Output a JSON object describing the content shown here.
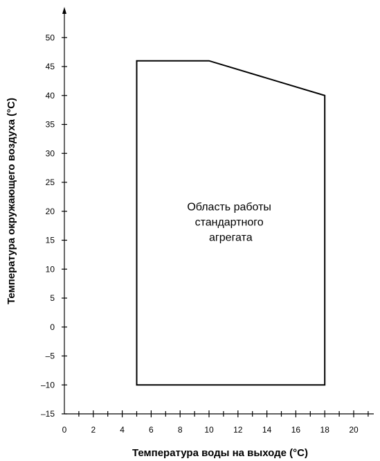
{
  "chart_data": {
    "type": "area",
    "xlabel": "Температура воды на выходе (°C)",
    "ylabel": "Температура окружающего воздуха (°C)",
    "xlim": [
      0,
      22
    ],
    "ylim": [
      -15,
      55
    ],
    "x_ticks": [
      {
        "value": 0,
        "label": "0"
      },
      {
        "value": 2,
        "label": "2"
      },
      {
        "value": 4,
        "label": "4"
      },
      {
        "value": 6,
        "label": "6"
      },
      {
        "value": 8,
        "label": "8"
      },
      {
        "value": 10,
        "label": "10"
      },
      {
        "value": 12,
        "label": "12"
      },
      {
        "value": 14,
        "label": "14"
      },
      {
        "value": 16,
        "label": "16"
      },
      {
        "value": 18,
        "label": "18"
      },
      {
        "value": 20,
        "label": "20"
      }
    ],
    "x_minor_ticks": [
      1,
      3,
      5,
      7,
      9,
      11,
      13,
      15,
      17,
      19,
      21
    ],
    "y_ticks": [
      {
        "value": 50,
        "label": "50"
      },
      {
        "value": 45,
        "label": "45"
      },
      {
        "value": 40,
        "label": "40"
      },
      {
        "value": 35,
        "label": "35"
      },
      {
        "value": 30,
        "label": "30"
      },
      {
        "value": 25,
        "label": "25"
      },
      {
        "value": 20,
        "label": "20"
      },
      {
        "value": 15,
        "label": "15"
      },
      {
        "value": 10,
        "label": "10"
      },
      {
        "value": 5,
        "label": "5"
      },
      {
        "value": 0,
        "label": "0"
      },
      {
        "value": -5,
        "label": "–5"
      },
      {
        "value": -10,
        "label": "–10"
      },
      {
        "value": -15,
        "label": "–15"
      }
    ],
    "region": {
      "label_lines": [
        "Область работы",
        "стандартного",
        "агрегата"
      ],
      "points": [
        {
          "x": 5,
          "y": -10
        },
        {
          "x": 5,
          "y": 46
        },
        {
          "x": 10,
          "y": 46
        },
        {
          "x": 18,
          "y": 40
        },
        {
          "x": 18,
          "y": -10
        }
      ],
      "label_at": {
        "x": 11.5,
        "y": 17.5
      }
    },
    "grid": false,
    "colors": {
      "line": "#000000",
      "background": "#ffffff"
    }
  }
}
